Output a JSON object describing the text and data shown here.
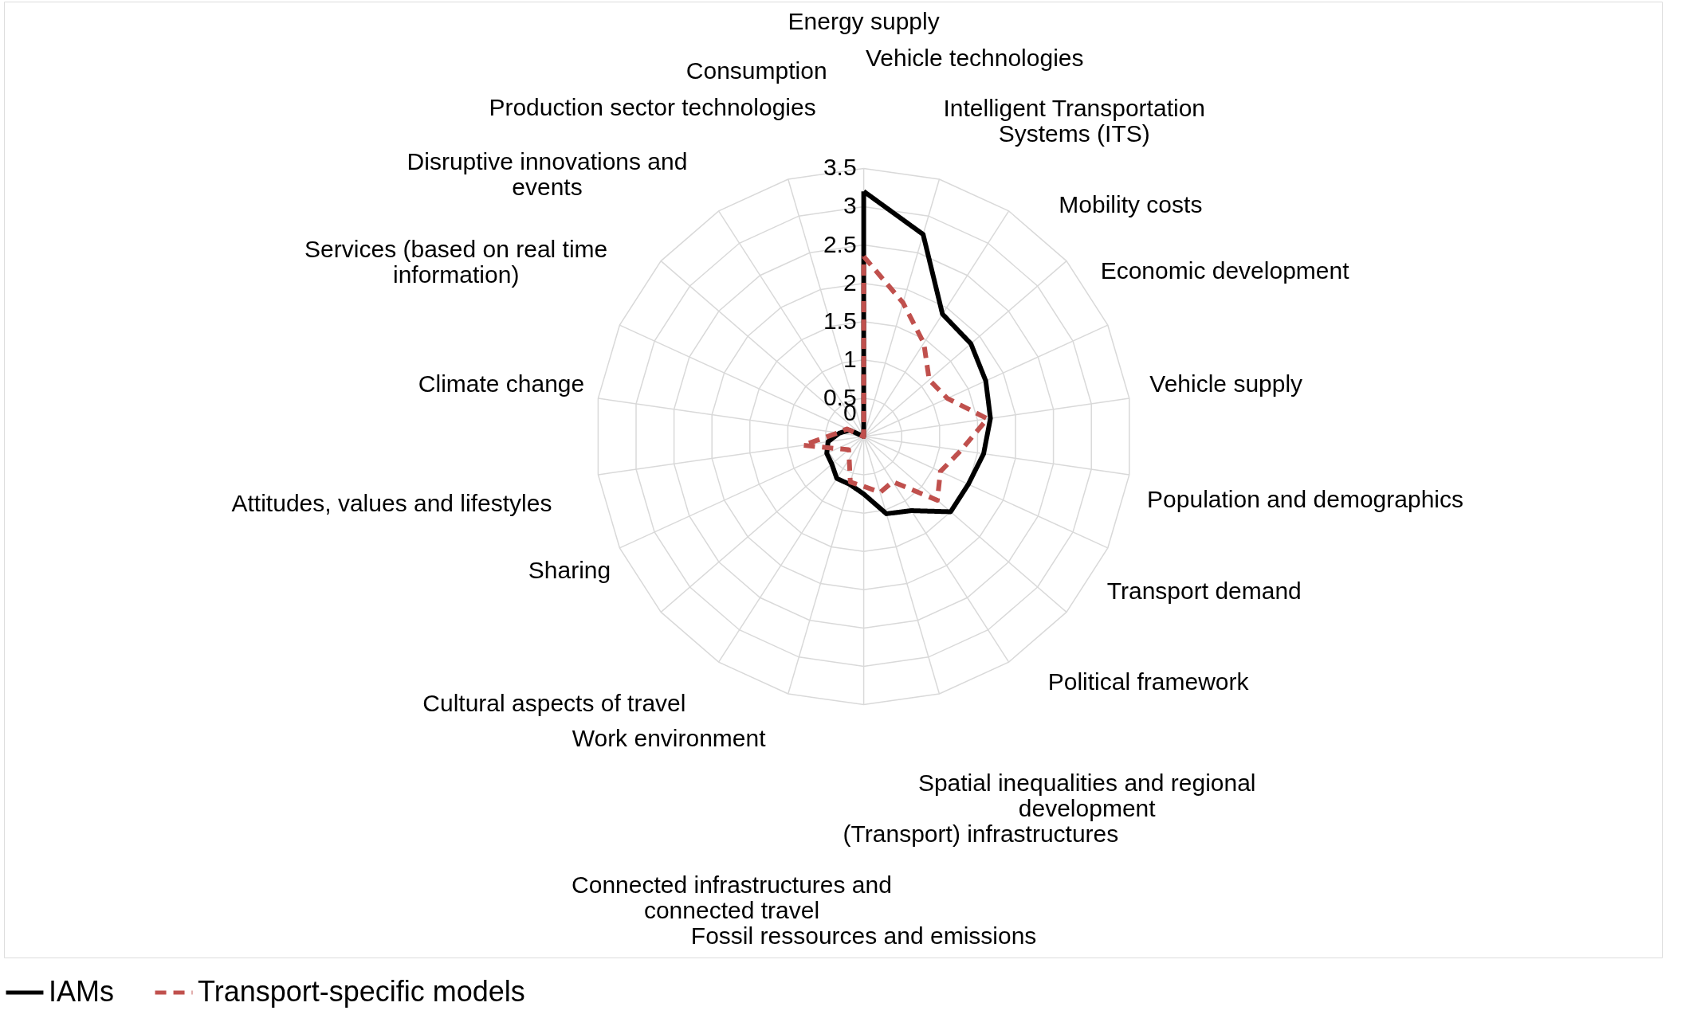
{
  "chart_data": {
    "type": "radar",
    "categories": [
      "Energy supply",
      "Vehicle technologies",
      "Intelligent Transportation\nSystems (ITS)",
      "Mobility costs",
      "Economic development",
      "Vehicle supply",
      "Population and demographics",
      "Transport demand",
      "Political framework",
      "Spatial inequalities and regional\ndevelopment",
      "(Transport) infrastructures",
      "Fossil ressources and emissions",
      "Connected infrastructures and\nconnected travel",
      "Work environment",
      "Cultural aspects of travel",
      "Sharing",
      "Attitudes, values and lifestyles",
      "Climate change",
      "Services (based on real time\ninformation)",
      "Disruptive innovations and\nevents",
      "Production sector technologies",
      "Consumption"
    ],
    "series": [
      {
        "name": "IAMs",
        "color": "#000000",
        "line_style": "solid",
        "values": [
          3.2,
          2.75,
          1.9,
          1.85,
          1.75,
          1.67,
          1.58,
          1.5,
          1.5,
          1.15,
          1.05,
          0.75,
          0.65,
          0.65,
          0.55,
          0.53,
          0.47,
          0.32,
          0.2,
          0,
          0,
          0
        ]
      },
      {
        "name": "Transport-specific models",
        "color": "#c0504d",
        "line_style": "dashed",
        "values": [
          2.35,
          1.82,
          1.45,
          1.13,
          1.2,
          1.63,
          1.28,
          1.1,
          1.27,
          0.7,
          0.76,
          0.65,
          0.62,
          0.35,
          0.26,
          0.38,
          0.8,
          0.34,
          0.24,
          0,
          0,
          0
        ]
      }
    ],
    "ylim": [
      0,
      3.5
    ],
    "yticks": [
      0,
      0.5,
      1,
      1.5,
      2,
      2.5,
      3,
      3.5
    ],
    "grid": true,
    "legend": "bottom"
  }
}
